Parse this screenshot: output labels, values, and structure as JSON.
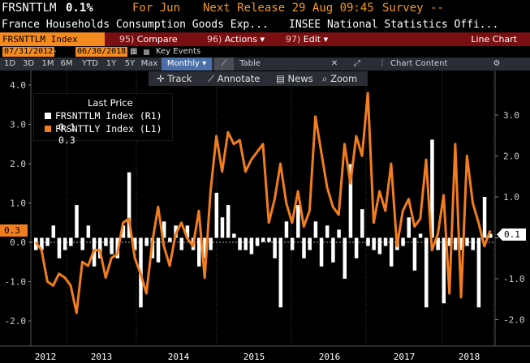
{
  "header": {
    "ticker": "FRSNTTLM",
    "value": "0.1%",
    "period": "For Jun",
    "next_release": "Next Release 29 Aug 09:45",
    "survey": "Survey --",
    "description": "France Households Consumption Goods Exp...",
    "source": "INSEE National Statistics Offi..."
  },
  "command_bar": {
    "ticker_input": "FRSNTTLM Index",
    "compare": "Compare",
    "compare_num": "95)",
    "actions": "Actions",
    "actions_num": "96)",
    "edit": "Edit",
    "edit_num": "97)",
    "chart_title": "Line Chart"
  },
  "date_range": {
    "start": "07/31/2012",
    "end": "06/30/2018",
    "key_events": "Key Events"
  },
  "periods": [
    "1D",
    "3D",
    "1M",
    "6M",
    "YTD",
    "1Y",
    "5Y",
    "Max"
  ],
  "frequency": "Monthly",
  "table_label": "Table",
  "chart_content_label": "Chart Content",
  "tools": {
    "track": "Track",
    "annotate": "Annotate",
    "news": "News",
    "zoom": "Zoom"
  },
  "legend": {
    "title": "Last Price",
    "items": [
      {
        "name": "FRSNTTLM Index (R1)",
        "value": "0.1",
        "color": "#ffffff"
      },
      {
        "name": "FRSNTTLY Index (L1)",
        "value": "0.3",
        "color": "#f27d1e"
      }
    ]
  },
  "markers": {
    "left": "0.3",
    "right": "0.1"
  },
  "chart_data": {
    "type": "bar",
    "x_labels": [
      "2012",
      "2013",
      "2014",
      "2015",
      "2016",
      "2017",
      "2018"
    ],
    "left_axis": {
      "ticks": [
        "4.0",
        "3.0",
        "2.0",
        "1.0",
        "0.0",
        "-1.0",
        "-2.0"
      ],
      "range": [
        -2.2,
        4.2
      ]
    },
    "right_axis": {
      "ticks": [
        "3.0",
        "2.0",
        "1.0",
        "",
        "-1.0",
        "-2.0"
      ],
      "range": [
        -2.1,
        3.9
      ]
    },
    "series": [
      {
        "name": "FRSNTTLM Index (R1)",
        "type": "bar",
        "axis": "right",
        "values": [
          -0.3,
          -0.3,
          -0.2,
          0.3,
          -0.5,
          -0.3,
          -0.2,
          0.8,
          -0.3,
          0.3,
          -0.7,
          -0.5,
          -0.2,
          -0.4,
          -0.5,
          0.3,
          1.6,
          -0.3,
          -1.7,
          -0.2,
          -0.5,
          -0.6,
          0.4,
          -0.1,
          0.3,
          -0.3,
          0.3,
          -0.3,
          -0.7,
          -0.5,
          -0.3,
          1.1,
          0.5,
          0.8,
          0.1,
          -0.3,
          -0.3,
          -0.4,
          -0.2,
          -0.1,
          -0.1,
          -0.5,
          -1.7,
          0.4,
          -0.3,
          0.8,
          -0.5,
          -0.3,
          0.4,
          -0.7,
          0.3,
          -0.6,
          0.2,
          -1.0,
          1.8,
          -0.5,
          0.7,
          -0.2,
          -0.3,
          -0.4,
          -0.2,
          -0.7,
          -0.3,
          -0.2,
          0.5,
          -0.8,
          0.1,
          -1.7,
          2.4,
          -0.3,
          -1.6,
          -0.2,
          -0.3,
          -0.3,
          -0.2,
          -0.3,
          -1.7,
          1.0,
          0.1
        ],
        "color": "#ffffff"
      },
      {
        "name": "FRSNTTLY Index (L1)",
        "type": "line",
        "axis": "left",
        "values": [
          0.0,
          -0.2,
          -1.0,
          -1.1,
          -0.8,
          -0.9,
          -1.1,
          -1.8,
          -0.5,
          -0.6,
          -0.2,
          -0.2,
          -0.9,
          -0.4,
          -0.3,
          0.5,
          0.6,
          -0.4,
          -0.8,
          -1.3,
          0.0,
          0.9,
          -0.1,
          -0.6,
          0.2,
          0.5,
          0.1,
          -0.1,
          0.8,
          -0.9,
          1.3,
          2.7,
          1.8,
          2.8,
          2.5,
          2.6,
          1.8,
          2.1,
          2.3,
          2.5,
          0.5,
          1.1,
          2.0,
          1.0,
          0.5,
          1.3,
          0.4,
          0.8,
          3.2,
          2.3,
          1.4,
          0.9,
          0.7,
          2.5,
          1.5,
          2.7,
          2.2,
          3.8,
          0.5,
          1.3,
          0.8,
          2.0,
          -0.1,
          0.8,
          1.1,
          0.4,
          0.6,
          2.1,
          -0.2,
          0.2,
          1.2,
          -1.3,
          2.5,
          -1.4,
          2.2,
          1.0,
          0.5,
          -0.1,
          0.3
        ],
        "color": "#f27d1e"
      }
    ]
  }
}
